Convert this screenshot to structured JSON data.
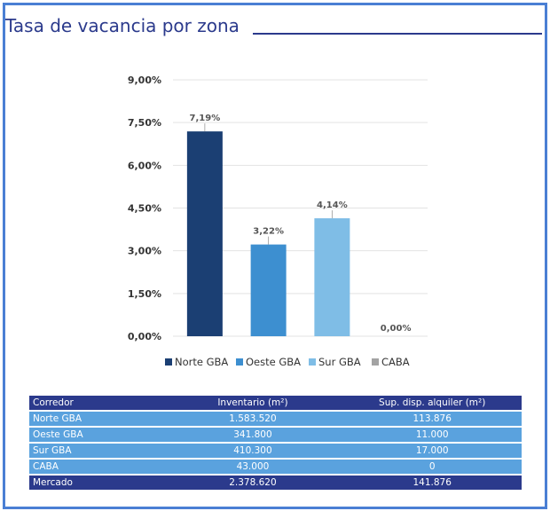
{
  "header": {
    "title": "Tasa de vacancia por zona"
  },
  "chart_data": {
    "type": "bar",
    "categories": [
      "Norte GBA",
      "Oeste GBA",
      "Sur GBA",
      "CABA"
    ],
    "values": [
      7.19,
      3.22,
      4.14,
      0.0
    ],
    "data_labels": [
      "7,19%",
      "3,22%",
      "4,14%",
      "0,00%"
    ],
    "colors": [
      "#1b3f73",
      "#3d8fd0",
      "#7fbde6",
      "#a3a3a3"
    ],
    "ylim": [
      0,
      9
    ],
    "yticks": [
      0,
      1.5,
      3,
      4.5,
      6,
      7.5,
      9
    ],
    "ytick_labels": [
      "0,00%",
      "1,50%",
      "3,00%",
      "4,50%",
      "6,00%",
      "7,50%",
      "9,00%"
    ],
    "legend": [
      "Norte GBA",
      "Oeste GBA",
      "Sur GBA",
      "CABA"
    ],
    "legend_position": "bottom",
    "grid": true,
    "xlabel": "",
    "ylabel": ""
  },
  "table": {
    "headers": [
      "Corredor",
      "Inventario (m²)",
      "Sup. disp. alquiler (m²)"
    ],
    "rows": [
      [
        "Norte GBA",
        "1.583.520",
        "113.876"
      ],
      [
        "Oeste GBA",
        "341.800",
        "11.000"
      ],
      [
        "Sur GBA",
        "410.300",
        "17.000"
      ],
      [
        "CABA",
        "43.000",
        "0"
      ]
    ],
    "total": [
      "Mercado",
      "2.378.620",
      "141.876"
    ]
  }
}
